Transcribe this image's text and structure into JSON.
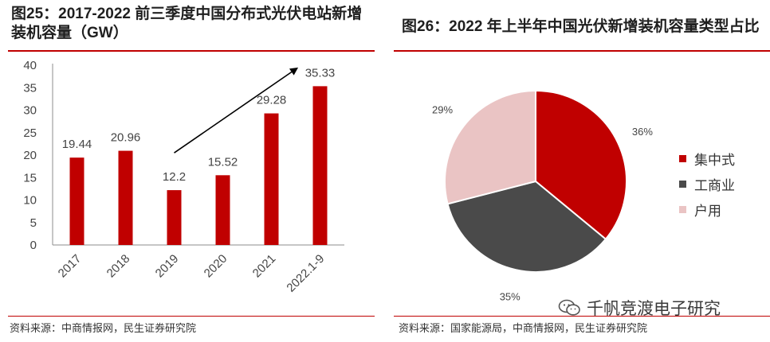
{
  "left": {
    "title": "图25：2017-2022 前三季度中国分布式光伏电站新增装机容量（GW）",
    "source": "资料来源：中商情报网，民生证券研究院"
  },
  "right": {
    "title": "图26：2022 年上半年中国光伏新增装机容量类型占比",
    "source": "资料来源：国家能源局，中商情报网，民生证券研究院"
  },
  "watermark": {
    "text": "千帆竞渡电子研究",
    "icon": "wechat-icon"
  },
  "chart_data": [
    {
      "type": "bar",
      "title": "2017-2022 前三季度中国分布式光伏电站新增装机容量（GW）",
      "categories": [
        "2017",
        "2018",
        "2019",
        "2020",
        "2021",
        "2022.1-9"
      ],
      "values": [
        19.44,
        20.96,
        12.2,
        15.52,
        29.28,
        35.33
      ],
      "value_labels": [
        "19.44",
        "20.96",
        "12.2",
        "15.52",
        "29.28",
        "35.33"
      ],
      "yticks": [
        0,
        5,
        10,
        15,
        20,
        25,
        30,
        35,
        40
      ],
      "ylim": [
        0,
        40
      ],
      "xlabel": "",
      "ylabel": "",
      "color": "#c00000",
      "annotation": "trend-arrow"
    },
    {
      "type": "pie",
      "title": "2022 年上半年中国光伏新增装机容量类型占比",
      "labels": [
        "集中式",
        "工商业",
        "户用"
      ],
      "values": [
        36,
        35,
        29
      ],
      "value_labels": [
        "36%",
        "35%",
        "29%"
      ],
      "colors": [
        "#c00000",
        "#4a4a4a",
        "#eac4c4"
      ],
      "legend": "right"
    }
  ]
}
